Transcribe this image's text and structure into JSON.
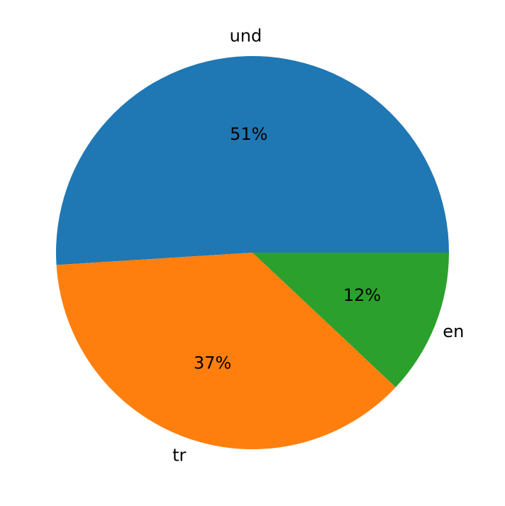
{
  "chart_data": {
    "type": "pie",
    "categories": [
      "und",
      "tr",
      "en"
    ],
    "values": [
      51,
      37,
      12
    ],
    "value_labels": [
      "51%",
      "37%",
      "12%"
    ],
    "colors": [
      "#1f77b4",
      "#ff7f0e",
      "#2ca02c"
    ]
  }
}
